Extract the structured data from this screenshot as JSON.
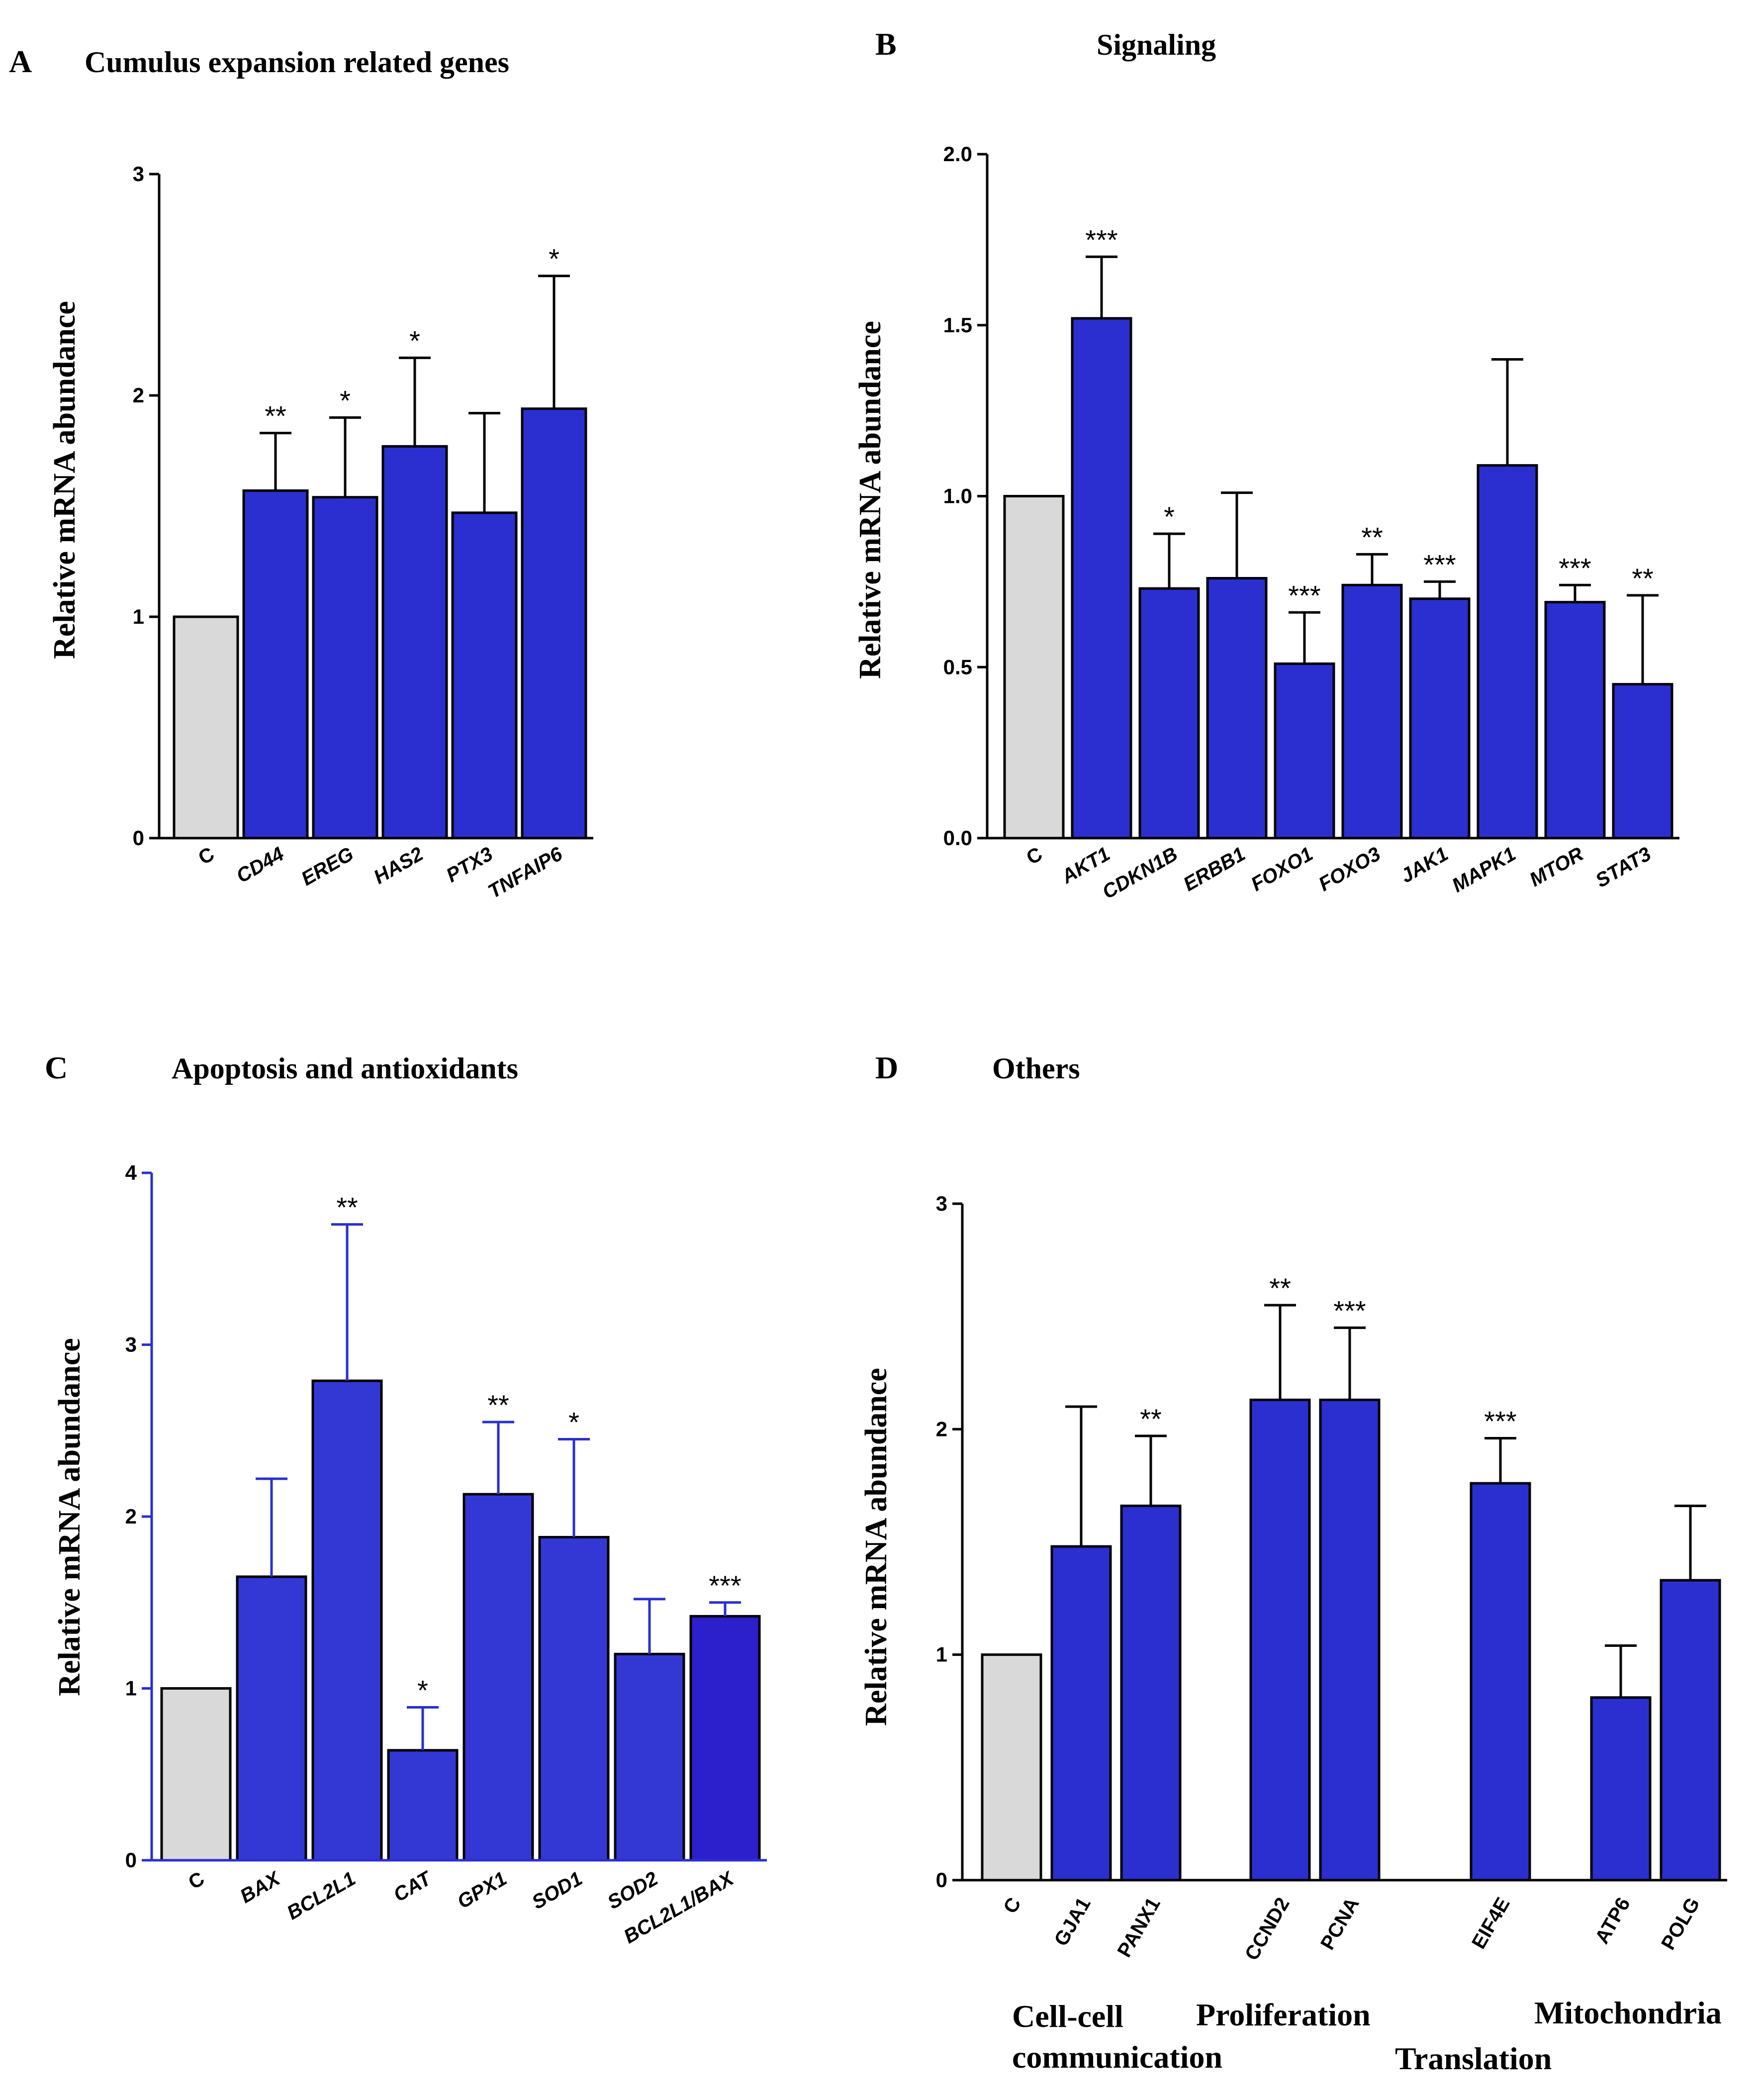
{
  "chart_data": [
    {
      "type": "bar",
      "letter": "A",
      "title": "Cumulus expansion related genes",
      "ylabel": "Relative mRNA abundance",
      "xlabel": "",
      "ylim": [
        0,
        3
      ],
      "yticks": [
        "0",
        "1",
        "2",
        "3"
      ],
      "ytick_values": [
        0,
        1,
        2,
        3
      ],
      "categories": [
        "C",
        "CD44",
        "EREG",
        "HAS2",
        "PTX3",
        "TNFAIP6"
      ],
      "italic": [
        false,
        true,
        true,
        true,
        true,
        true
      ],
      "values": [
        1.0,
        1.57,
        1.54,
        1.77,
        1.47,
        1.94
      ],
      "errors": [
        0,
        0.26,
        0.36,
        0.4,
        0.45,
        0.6
      ],
      "significance": [
        "",
        "**",
        "*",
        "*",
        "",
        "*"
      ],
      "colors": [
        "#d9d9d9",
        "#2b2fd0",
        "#2b2fd0",
        "#2b2fd0",
        "#2b2fd0",
        "#2b2fd0"
      ]
    },
    {
      "type": "bar",
      "letter": "B",
      "title": "Signaling",
      "ylabel": "Relative mRNA abundance",
      "xlabel": "",
      "ylim": [
        0,
        2
      ],
      "yticks": [
        "0.0",
        "0.5",
        "1.0",
        "1.5",
        "2.0"
      ],
      "ytick_values": [
        0,
        0.5,
        1.0,
        1.5,
        2.0
      ],
      "categories": [
        "C",
        "AKT1",
        "CDKN1B",
        "ERBB1",
        "FOXO1",
        "FOXO3",
        "JAK1",
        "MAPK1",
        "MTOR",
        "STAT3"
      ],
      "italic": [
        false,
        true,
        true,
        true,
        true,
        true,
        true,
        true,
        true,
        true
      ],
      "values": [
        1.0,
        1.52,
        0.73,
        0.76,
        0.51,
        0.74,
        0.7,
        1.09,
        0.69,
        0.45
      ],
      "errors": [
        0,
        0.18,
        0.16,
        0.25,
        0.15,
        0.09,
        0.05,
        0.31,
        0.05,
        0.26
      ],
      "significance": [
        "",
        "***",
        "*",
        "",
        "***",
        "**",
        "***",
        "",
        "***",
        "**"
      ],
      "colors": [
        "#d9d9d9",
        "#2b2fd0",
        "#2b2fd0",
        "#2b2fd0",
        "#2b2fd0",
        "#2b2fd0",
        "#2b2fd0",
        "#2b2fd0",
        "#2b2fd0",
        "#2b2fd0"
      ]
    },
    {
      "type": "bar",
      "letter": "C",
      "title": "Apoptosis and antioxidants",
      "ylabel": "Relative mRNA abundance",
      "xlabel": "",
      "ylim": [
        0,
        4
      ],
      "yticks": [
        "0",
        "1",
        "2",
        "3",
        "4"
      ],
      "ytick_values": [
        0,
        1,
        2,
        3,
        4
      ],
      "categories": [
        "C",
        "BAX",
        "BCL2L1",
        "CAT",
        "GPX1",
        "SOD1",
        "SOD2",
        "BCL2L1/BAX"
      ],
      "italic": [
        false,
        true,
        true,
        true,
        true,
        true,
        true,
        true
      ],
      "values": [
        1.0,
        1.65,
        2.79,
        0.64,
        2.13,
        1.88,
        1.2,
        1.42
      ],
      "errors": [
        0,
        0.57,
        0.91,
        0.25,
        0.42,
        0.57,
        0.32,
        0.08
      ],
      "significance": [
        "",
        "",
        "**",
        "*",
        "**",
        "*",
        "",
        "***"
      ],
      "colors": [
        "#d9d9d9",
        "#3338d4",
        "#3338d4",
        "#3338d4",
        "#3338d4",
        "#3338d4",
        "#3338d4",
        "#2c1fcc"
      ]
    },
    {
      "type": "bar",
      "letter": "D",
      "title": "Others",
      "ylabel": "Relative mRNA abundance",
      "xlabel": "",
      "ylim": [
        0,
        3
      ],
      "yticks": [
        "0",
        "1",
        "2",
        "3"
      ],
      "ytick_values": [
        0,
        1,
        2,
        3
      ],
      "categories": [
        "C",
        "GJA1",
        "PANX1",
        "CCND2",
        "PCNA",
        "EIF4E",
        "ATP6",
        "POLG"
      ],
      "italic": [
        false,
        false,
        false,
        false,
        false,
        false,
        false,
        false
      ],
      "values": [
        1.0,
        1.48,
        1.66,
        2.13,
        2.13,
        1.76,
        0.81,
        1.33
      ],
      "errors": [
        0,
        0.62,
        0.31,
        0.42,
        0.32,
        0.2,
        0.23,
        0.33
      ],
      "significance": [
        "",
        "",
        "**",
        "**",
        "***",
        "***",
        "",
        ""
      ],
      "colors": [
        "#d9d9d9",
        "#2b2fd0",
        "#2b2fd0",
        "#2b2fd0",
        "#2b2fd0",
        "#2b2fd0",
        "#2b2fd0",
        "#2b2fd0"
      ],
      "groups": [
        "Cell-cell communication",
        "Proliferation",
        "Translation",
        "Mitochondria"
      ]
    }
  ]
}
